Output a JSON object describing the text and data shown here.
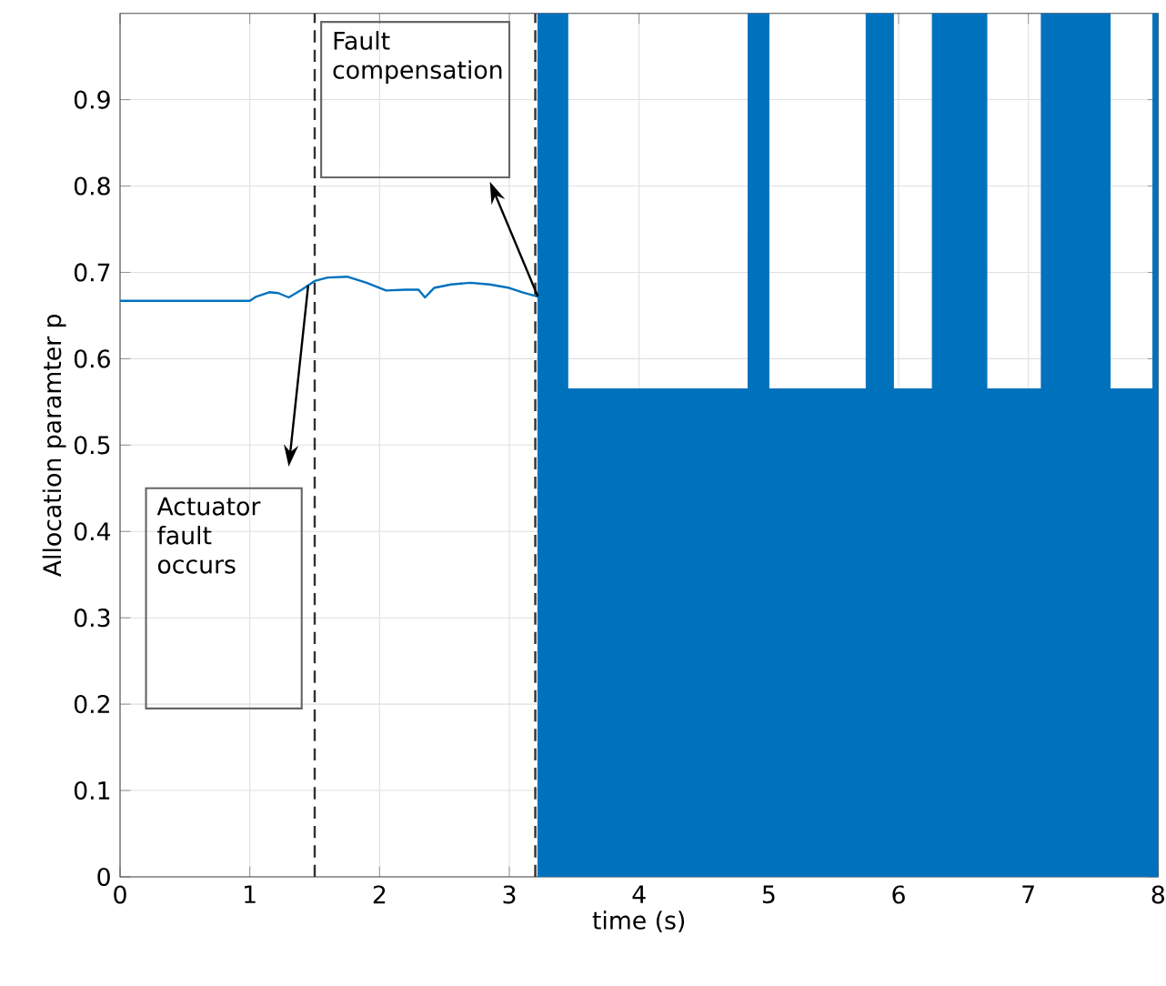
{
  "chart_data": {
    "type": "line",
    "xlabel": "time (s)",
    "ylabel": "Allocation paramter p",
    "xlim": [
      0,
      8
    ],
    "ylim": [
      0,
      1
    ],
    "xticks": [
      0,
      1,
      2,
      3,
      4,
      5,
      6,
      7,
      8
    ],
    "yticks": [
      0,
      0.1,
      0.2,
      0.3,
      0.4,
      0.5,
      0.6,
      0.7,
      0.8,
      0.9
    ],
    "grid": true,
    "series": [
      {
        "color": "#0072bd",
        "x": [
          0,
          0.5,
          1.0,
          1.05,
          1.15,
          1.22,
          1.3,
          1.4,
          1.5,
          1.6,
          1.75,
          1.9,
          2.05,
          2.2,
          2.3,
          2.35,
          2.42,
          2.55,
          2.7,
          2.85,
          3.0,
          3.1,
          3.22
        ],
        "values": [
          0.667,
          0.667,
          0.667,
          0.672,
          0.677,
          0.676,
          0.671,
          0.68,
          0.69,
          0.694,
          0.695,
          0.688,
          0.679,
          0.68,
          0.68,
          0.671,
          0.682,
          0.686,
          0.688,
          0.686,
          0.682,
          0.677,
          0.672
        ]
      },
      {
        "type": "area",
        "color": "#0072bd",
        "x": [
          3.22,
          3.45,
          3.45,
          4.84,
          4.84,
          5.0,
          5.0,
          5.75,
          5.75,
          5.96,
          5.96,
          6.26,
          6.26,
          6.68,
          6.68,
          7.1,
          7.1,
          7.63,
          7.63,
          7.96,
          7.96,
          8.0
        ],
        "values": [
          1,
          1,
          0.565,
          0.565,
          1,
          1,
          0.565,
          0.565,
          1,
          1,
          0.565,
          0.565,
          1,
          1,
          0.565,
          0.565,
          1,
          1,
          0.565,
          0.565,
          1,
          1
        ]
      }
    ],
    "ref_lines": [
      {
        "axis": "x",
        "value": 1.5,
        "color": "#303030",
        "line_style": "dashed"
      },
      {
        "axis": "x",
        "value": 3.2,
        "color": "#303030",
        "line_style": "dashed"
      }
    ],
    "annotations": [
      "Actuator fault occurs",
      "Fault compensation"
    ]
  }
}
